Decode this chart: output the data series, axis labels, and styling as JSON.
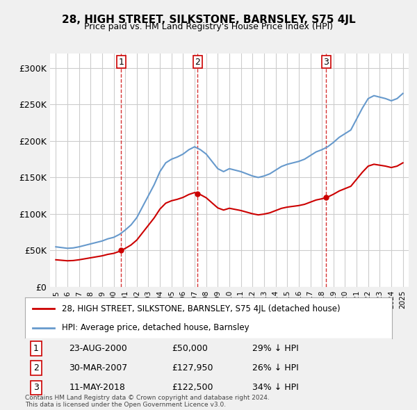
{
  "title": "28, HIGH STREET, SILKSTONE, BARNSLEY, S75 4JL",
  "subtitle": "Price paid vs. HM Land Registry's House Price Index (HPI)",
  "red_label": "28, HIGH STREET, SILKSTONE, BARNSLEY, S75 4JL (detached house)",
  "blue_label": "HPI: Average price, detached house, Barnsley",
  "transactions": [
    {
      "num": 1,
      "date": "23-AUG-2000",
      "price": "£50,000",
      "pct": "29% ↓ HPI",
      "year": 2000.65
    },
    {
      "num": 2,
      "date": "30-MAR-2007",
      "price": "£127,950",
      "pct": "26% ↓ HPI",
      "year": 2007.25
    },
    {
      "num": 3,
      "date": "11-MAY-2018",
      "price": "£122,500",
      "pct": "34% ↓ HPI",
      "year": 2018.37
    }
  ],
  "footnote": "Contains HM Land Registry data © Crown copyright and database right 2024.\nThis data is licensed under the Open Government Licence v3.0.",
  "ylim": [
    0,
    320000
  ],
  "yticks": [
    0,
    50000,
    100000,
    150000,
    200000,
    250000,
    300000
  ],
  "ytick_labels": [
    "£0",
    "£50K",
    "£100K",
    "£150K",
    "£200K",
    "£250K",
    "£300K"
  ],
  "bg_color": "#f0f0f0",
  "plot_bg_color": "#ffffff",
  "red_color": "#cc0000",
  "blue_color": "#6699cc",
  "vline_color": "#cc0000",
  "grid_color": "#cccccc"
}
